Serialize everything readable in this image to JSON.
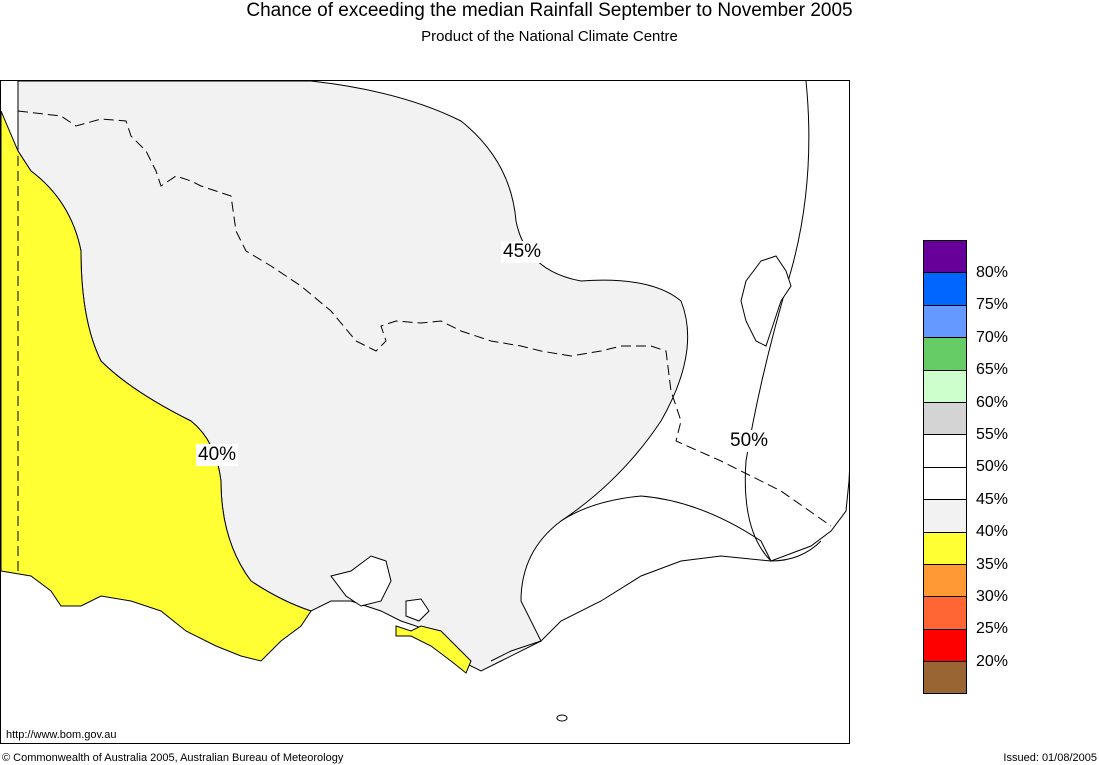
{
  "header": {
    "title": "Chance of exceeding the median Rainfall September to November 2005",
    "subtitle": "Product of the National Climate Centre"
  },
  "map": {
    "contour_labels": {
      "c45": "45%",
      "c40": "40%",
      "c50": "50%"
    },
    "zone_colors": {
      "35_40": "#ffff33",
      "40_45": "#f2f2f2",
      "45_55": "#ffffff"
    },
    "url": "http://www.bom.gov.au"
  },
  "legend": {
    "swatches": [
      {
        "color": "#660099"
      },
      {
        "color": "#0066ff"
      },
      {
        "color": "#6699ff"
      },
      {
        "color": "#66cc66"
      },
      {
        "color": "#ccffcc"
      },
      {
        "color": "#d4d4d4"
      },
      {
        "color": "#ffffff"
      },
      {
        "color": "#ffffff"
      },
      {
        "color": "#f2f2f2"
      },
      {
        "color": "#ffff33"
      },
      {
        "color": "#ff9933"
      },
      {
        "color": "#ff6633"
      },
      {
        "color": "#ff0000"
      },
      {
        "color": "#996633"
      }
    ],
    "labels": [
      "80%",
      "75%",
      "70%",
      "65%",
      "60%",
      "55%",
      "50%",
      "45%",
      "40%",
      "35%",
      "30%",
      "25%",
      "20%"
    ]
  },
  "footer": {
    "copyright": "© Commonwealth of Australia 2005, Australian Bureau of Meteorology",
    "issued": "Issued: 01/08/2005"
  }
}
